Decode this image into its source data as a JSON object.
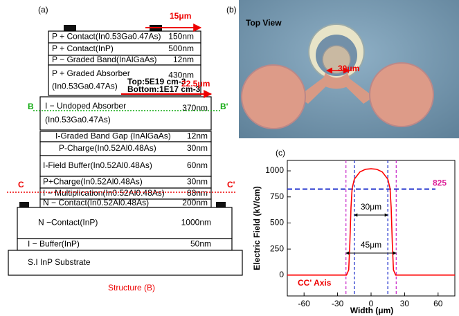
{
  "panel_a": {
    "caption": "(a)",
    "title": "Structure (B)",
    "layers": [
      {
        "label": [
          "P + Contact(In0.53Ga0.47As)"
        ],
        "thickness": "150nm"
      },
      {
        "label": [
          "P + Contact(InP)"
        ],
        "thickness": "500nm"
      },
      {
        "label": [
          "P − Graded Band(InAlGaAs)"
        ],
        "thickness": "12nm"
      },
      {
        "label": [
          "P + Graded Absorber",
          "(In0.53Ga0.47As)"
        ],
        "thickness": "430nm"
      },
      {
        "label": [
          "I − Undoped Absorber",
          "(In0.53Ga0.47As)"
        ],
        "thickness": "370nm"
      },
      {
        "label": [
          "I-Graded Band Gap (InAlGaAs)"
        ],
        "thickness": "12nm"
      },
      {
        "label": [
          "P-Charge(In0.52Al0.48As)"
        ],
        "thickness": "30nm"
      },
      {
        "label": [
          "I-Field Buffer(In0.52Al0.48As)"
        ],
        "thickness": "60nm"
      },
      {
        "label": [
          "P+Charge(In0.52Al0.48As)"
        ],
        "thickness": "30nm"
      },
      {
        "label": [
          "I − Multiplication(In0.52Al0.48As)"
        ],
        "thickness": "88nm"
      },
      {
        "label": [
          "N − Contact(In0.52Al0.48As)"
        ],
        "thickness": "200nm"
      },
      {
        "label": [
          "N −Contact(InP)"
        ],
        "thickness": "1000nm"
      },
      {
        "label": [
          "I − Buffer(InP)"
        ],
        "thickness": "50nm"
      },
      {
        "label": [
          "S.I InP Substrate"
        ]
      }
    ],
    "doping": [
      "Top:5E19 cm-3",
      "Bottom:1E17 cm-3"
    ],
    "width_top": "15μm",
    "width_mesa": "22.5μm",
    "cut_b": [
      "B",
      "B'"
    ],
    "cut_c": [
      "C",
      "C'"
    ]
  },
  "panel_b": {
    "caption": "(b)",
    "title": "Top View",
    "dimension": "30μm"
  },
  "chart_data": {
    "type": "line",
    "caption": "(c)",
    "x_label": "Width (μm)",
    "y_label": "Electric Field (kV/cm)",
    "annotation": "CC' Axis",
    "x": [
      -75,
      -30,
      -22,
      -20,
      -19,
      -18,
      -17,
      -15,
      -10,
      -5,
      0,
      5,
      10,
      15,
      17,
      18,
      19,
      20,
      22,
      30,
      75
    ],
    "series": [
      {
        "name": "CC' Axis",
        "color": "#ff0000",
        "values": [
          0,
          0,
          0,
          50,
          300,
          650,
          830,
          920,
          990,
          1015,
          1020,
          1015,
          990,
          920,
          830,
          650,
          300,
          50,
          0,
          0,
          0
        ]
      }
    ],
    "xlim": [
      -75,
      75
    ],
    "ylim": [
      -200,
      1100
    ],
    "xticks": [
      -60,
      -30,
      0,
      30,
      60
    ],
    "yticks": [
      0,
      250,
      500,
      750,
      1000
    ],
    "vlines": [
      {
        "x": -22.5,
        "color": "#cc33cc"
      },
      {
        "x": 22.5,
        "color": "#cc33cc"
      },
      {
        "x": -15,
        "color": "#2233cc"
      },
      {
        "x": 15,
        "color": "#2233cc"
      }
    ],
    "hline": {
      "y": 825,
      "color": "#2233cc",
      "label_color": "#dd2299"
    },
    "spans": [
      "30μm",
      "45μm"
    ]
  }
}
